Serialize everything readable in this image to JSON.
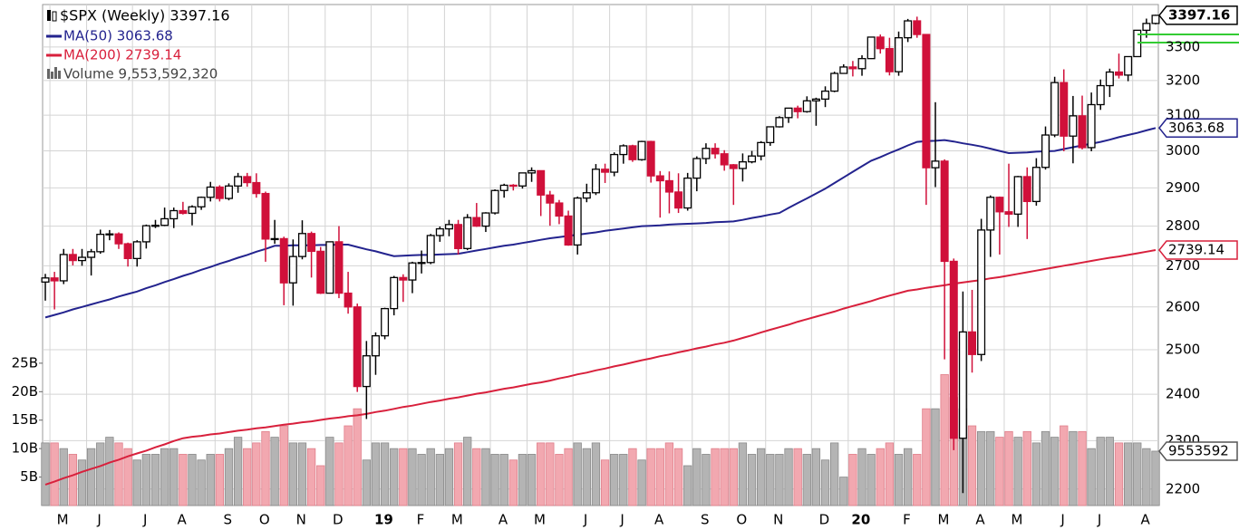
{
  "chart_data": {
    "type": "candlestick",
    "title": "$SPX (Weekly) 3397.16",
    "last_label": "3397.16",
    "categories": [
      null,
      "M",
      null,
      null,
      null,
      "J",
      null,
      null,
      null,
      null,
      "J",
      null,
      null,
      null,
      "A",
      null,
      null,
      null,
      null,
      "S",
      null,
      null,
      null,
      "O",
      null,
      null,
      null,
      "N",
      null,
      null,
      null,
      "D",
      null,
      null,
      null,
      null,
      "19",
      null,
      null,
      null,
      "F",
      null,
      null,
      null,
      "M",
      null,
      null,
      null,
      null,
      "A",
      null,
      null,
      null,
      "M",
      null,
      null,
      null,
      null,
      "J",
      null,
      null,
      null,
      "J",
      null,
      null,
      null,
      "A",
      null,
      null,
      null,
      null,
      "S",
      null,
      null,
      null,
      "O",
      null,
      null,
      null,
      "N",
      null,
      null,
      null,
      null,
      "D",
      null,
      null,
      null,
      "20",
      null,
      null,
      null,
      null,
      "F",
      null,
      null,
      null,
      "M",
      null,
      null,
      null,
      "A",
      null,
      null,
      null,
      "M",
      null,
      null,
      null,
      null,
      "J",
      null,
      null,
      null,
      "J",
      null,
      null,
      null,
      null,
      "A",
      null,
      null
    ],
    "open": [
      2660,
      2670,
      2663,
      2728,
      2713,
      2721,
      2735,
      2779,
      2780,
      2755,
      2718,
      2760,
      2801,
      2802,
      2819,
      2840,
      2833,
      2850,
      2875,
      2902,
      2872,
      2905,
      2930,
      2914,
      2885,
      2767,
      2768,
      2658,
      2723,
      2781,
      2736,
      2633,
      2760,
      2633,
      2600,
      2417,
      2486,
      2532,
      2596,
      2671,
      2665,
      2707,
      2708,
      2776,
      2793,
      2804,
      2743,
      2822,
      2800,
      2834,
      2893,
      2907,
      2905,
      2940,
      2946,
      2881,
      2860,
      2826,
      2752,
      2873,
      2887,
      2950,
      2942,
      2990,
      3014,
      2976,
      3026,
      2932,
      2919,
      2889,
      2847,
      2926,
      2979,
      3007,
      2992,
      2962,
      2952,
      2970,
      2986,
      3023,
      3067,
      3093,
      3120,
      3110,
      3141,
      3146,
      3169,
      3221,
      3240,
      3235,
      3265,
      3330,
      3295,
      3226,
      3328,
      3380,
      3338,
      2954,
      2972,
      2711,
      2305,
      2541,
      2489,
      2790,
      2875,
      2837,
      2831,
      2930,
      2864,
      2955,
      3044,
      3194,
      3041,
      3098,
      3009,
      3130,
      3185,
      3225,
      3216,
      3271,
      3351,
      3372
    ],
    "high": [
      2680,
      2685,
      2742,
      2742,
      2742,
      2742,
      2791,
      2790,
      2784,
      2758,
      2764,
      2804,
      2816,
      2848,
      2848,
      2863,
      2854,
      2877,
      2916,
      2907,
      2912,
      2940,
      2940,
      2939,
      2890,
      2816,
      2773,
      2766,
      2815,
      2786,
      2747,
      2761,
      2800,
      2685,
      2608,
      2520,
      2540,
      2598,
      2675,
      2679,
      2710,
      2738,
      2780,
      2799,
      2816,
      2816,
      2831,
      2860,
      2836,
      2896,
      2911,
      2910,
      2940,
      2955,
      2947,
      2892,
      2868,
      2840,
      2877,
      2911,
      2964,
      2965,
      2996,
      3018,
      3017,
      3028,
      3028,
      2945,
      2944,
      2939,
      2940,
      2985,
      3021,
      3021,
      3002,
      2964,
      2993,
      3000,
      3027,
      3068,
      3097,
      3121,
      3127,
      3154,
      3150,
      3183,
      3226,
      3248,
      3258,
      3275,
      3330,
      3338,
      3328,
      3347,
      3386,
      3393,
      3338,
      3137,
      2977,
      2718,
      2637,
      2641,
      2819,
      2880,
      2877,
      2965,
      2932,
      2955,
      2980,
      3068,
      3211,
      3233,
      3155,
      3156,
      3165,
      3203,
      3235,
      3280,
      3272,
      3352,
      3387,
      3399
    ],
    "low": [
      2615,
      2594,
      2655,
      2701,
      2700,
      2676,
      2730,
      2764,
      2742,
      2698,
      2698,
      2743,
      2795,
      2800,
      2795,
      2830,
      2802,
      2842,
      2864,
      2864,
      2867,
      2887,
      2903,
      2874,
      2710,
      2755,
      2604,
      2603,
      2716,
      2671,
      2631,
      2632,
      2621,
      2584,
      2405,
      2346,
      2443,
      2524,
      2580,
      2612,
      2633,
      2681,
      2704,
      2760,
      2774,
      2728,
      2739,
      2798,
      2785,
      2830,
      2874,
      2893,
      2898,
      2916,
      2826,
      2801,
      2805,
      2750,
      2728,
      2862,
      2881,
      2913,
      2931,
      2965,
      2970,
      2973,
      2914,
      2822,
      2833,
      2834,
      2840,
      2891,
      2964,
      2979,
      2946,
      2855,
      2917,
      2966,
      2974,
      3014,
      3065,
      3078,
      3091,
      3107,
      3070,
      3123,
      3166,
      3221,
      3212,
      3214,
      3264,
      3280,
      3215,
      3214,
      3315,
      3328,
      2855,
      2902,
      2478,
      2280,
      2192,
      2448,
      2474,
      2722,
      2728,
      2798,
      2798,
      2767,
      2853,
      2949,
      3038,
      2999,
      2966,
      3004,
      2999,
      3115,
      3152,
      3206,
      3198,
      3270,
      3328,
      3369
    ],
    "close": [
      2670,
      2663,
      2728,
      2713,
      2721,
      2735,
      2779,
      2780,
      2755,
      2718,
      2760,
      2801,
      2802,
      2819,
      2840,
      2833,
      2850,
      2875,
      2902,
      2872,
      2905,
      2930,
      2914,
      2885,
      2767,
      2768,
      2658,
      2723,
      2781,
      2736,
      2633,
      2760,
      2633,
      2600,
      2417,
      2486,
      2532,
      2596,
      2671,
      2665,
      2707,
      2708,
      2776,
      2793,
      2804,
      2743,
      2822,
      2800,
      2834,
      2893,
      2907,
      2905,
      2940,
      2946,
      2881,
      2860,
      2826,
      2752,
      2873,
      2887,
      2950,
      2942,
      2990,
      3014,
      2976,
      3026,
      2932,
      2919,
      2889,
      2847,
      2926,
      2979,
      3007,
      2992,
      2962,
      2952,
      2970,
      2986,
      3023,
      3067,
      3093,
      3120,
      3110,
      3141,
      3146,
      3169,
      3221,
      3240,
      3235,
      3265,
      3330,
      3295,
      3226,
      3328,
      3380,
      3338,
      2954,
      2972,
      2711,
      2305,
      2541,
      2489,
      2790,
      2875,
      2837,
      2831,
      2930,
      2864,
      2955,
      3044,
      3194,
      3041,
      3098,
      3009,
      3130,
      3185,
      3225,
      3216,
      3271,
      3351,
      3372,
      3397.16
    ],
    "up_color": "#000000",
    "down_color": "#d0103a",
    "ma": [
      {
        "name": "MA(50) 3063.68",
        "last_label": "3063.68",
        "color": "#23238e",
        "values": [
          2575,
          2581,
          2587,
          2594,
          2600,
          2606,
          2612,
          2618,
          2625,
          2631,
          2637,
          2645,
          2652,
          2660,
          2667,
          2675,
          2682,
          2690,
          2697,
          2705,
          2712,
          2720,
          2727,
          2735,
          2742,
          2750,
          2750,
          2751,
          2751,
          2751,
          2752,
          2752,
          2753,
          2753,
          2747,
          2741,
          2736,
          2730,
          2724,
          2725,
          2726,
          2727,
          2727,
          2728,
          2729,
          2730,
          2734,
          2738,
          2742,
          2746,
          2750,
          2753,
          2757,
          2761,
          2765,
          2769,
          2772,
          2775,
          2778,
          2781,
          2784,
          2788,
          2791,
          2794,
          2797,
          2800,
          2801,
          2802,
          2804,
          2805,
          2806,
          2807,
          2808,
          2810,
          2811,
          2812,
          2816,
          2821,
          2825,
          2830,
          2834,
          2847,
          2860,
          2872,
          2885,
          2898,
          2913,
          2928,
          2943,
          2958,
          2973,
          2983,
          2994,
          3004,
          3015,
          3025,
          3027,
          3028,
          3030,
          3026,
          3021,
          3017,
          3012,
          3006,
          3000,
          2994,
          2995,
          2996,
          2998,
          2999,
          3000,
          3005,
          3010,
          3015,
          3020,
          3025,
          3031,
          3038,
          3044,
          3050,
          3057,
          3063.68
        ]
      },
      {
        "name": "MA(200) 2739.14",
        "last_label": "2739.14",
        "color": "#d8203c",
        "values": [
          2209,
          2215,
          2222,
          2228,
          2235,
          2241,
          2247,
          2254,
          2260,
          2267,
          2273,
          2279,
          2286,
          2292,
          2299,
          2305,
          2308,
          2310,
          2313,
          2315,
          2318,
          2321,
          2323,
          2326,
          2328,
          2331,
          2334,
          2336,
          2339,
          2341,
          2344,
          2347,
          2349,
          2352,
          2354,
          2357,
          2361,
          2364,
          2368,
          2372,
          2375,
          2379,
          2383,
          2386,
          2390,
          2393,
          2397,
          2401,
          2404,
          2408,
          2412,
          2415,
          2419,
          2423,
          2426,
          2430,
          2435,
          2439,
          2444,
          2448,
          2453,
          2457,
          2462,
          2466,
          2471,
          2476,
          2480,
          2485,
          2489,
          2494,
          2498,
          2503,
          2507,
          2512,
          2516,
          2521,
          2527,
          2533,
          2540,
          2546,
          2552,
          2558,
          2565,
          2571,
          2577,
          2583,
          2589,
          2596,
          2602,
          2608,
          2614,
          2621,
          2627,
          2633,
          2639,
          2642,
          2646,
          2649,
          2652,
          2656,
          2659,
          2662,
          2665,
          2669,
          2672,
          2676,
          2680,
          2684,
          2688,
          2692,
          2696,
          2700,
          2704,
          2708,
          2712,
          2716,
          2720,
          2723,
          2727,
          2731,
          2735,
          2739.14
        ]
      }
    ],
    "volume": {
      "name": "Volume 9,553,592,320",
      "last_label": "9553592",
      "axis": "y2",
      "values": [
        11,
        11,
        10,
        9,
        8,
        10,
        11,
        12,
        11,
        10,
        8,
        9,
        9,
        10,
        10,
        9,
        9,
        8,
        9,
        9,
        10,
        12,
        10,
        11,
        13,
        12,
        14,
        11,
        11,
        10,
        7,
        12,
        11,
        14,
        17,
        8,
        11,
        11,
        10,
        10,
        10,
        9,
        10,
        9,
        10,
        11,
        12,
        10,
        10,
        9,
        9,
        8,
        9,
        9,
        11,
        11,
        9,
        10,
        11,
        10,
        11,
        8,
        9,
        9,
        10,
        8,
        10,
        10,
        11,
        10,
        7,
        10,
        9,
        10,
        10,
        10,
        11,
        9,
        10,
        9,
        9,
        10,
        10,
        9,
        10,
        8,
        11,
        5,
        9,
        10,
        9,
        10,
        11,
        9,
        10,
        9,
        17,
        17,
        23,
        19,
        17,
        14,
        13,
        13,
        12,
        13,
        12,
        13,
        11,
        13,
        12,
        14,
        13,
        13,
        10,
        12,
        12,
        11,
        11,
        11,
        10,
        9.55359232
      ]
    },
    "log_scale": true,
    "ylim": [
      2167,
      3431
    ],
    "yticks": [
      2200,
      2300,
      2400,
      2500,
      2600,
      2700,
      2800,
      2900,
      3000,
      3100,
      3200,
      3300
    ],
    "y2lim": [
      0,
      88
    ],
    "y2ticks": [
      {
        "value": 5,
        "label": "5B"
      },
      {
        "value": 10,
        "label": "10B"
      },
      {
        "value": 15,
        "label": "15B"
      },
      {
        "value": 20,
        "label": "20B"
      },
      {
        "value": 25,
        "label": "25B"
      }
    ],
    "grid": true
  }
}
